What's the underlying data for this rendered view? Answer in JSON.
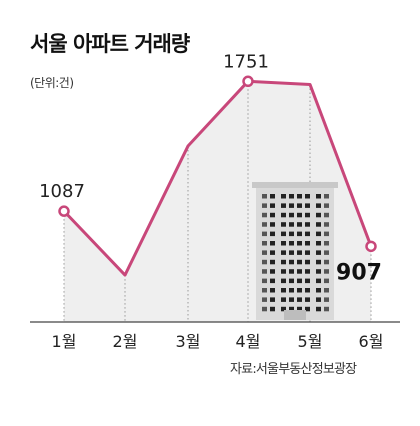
{
  "title": "서울 아파트 거래량",
  "unit": "(단위:건)",
  "source": "자료:서울부동산정보광장",
  "colors": {
    "line": "#c8477a",
    "area": "#efefef",
    "building": "#d9d9d9"
  },
  "chart_data": {
    "type": "line",
    "title": "서울 아파트 거래량",
    "categories": [
      "1월",
      "2월",
      "3월",
      "4월",
      "5월",
      "6월"
    ],
    "values": [
      1087,
      760,
      1420,
      1751,
      1735,
      907
    ],
    "data_labels": [
      {
        "index": 0,
        "text": "1087"
      },
      {
        "index": 3,
        "text": "1751"
      },
      {
        "index": 5,
        "text": "907"
      }
    ],
    "ylim": [
      520,
      1860
    ],
    "grid": false,
    "legend": "none"
  }
}
